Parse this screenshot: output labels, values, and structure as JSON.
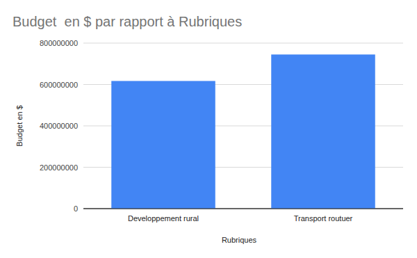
{
  "chart_data": {
    "type": "bar",
    "title": "Budget  en $ par rapport à Rubriques",
    "x_label": "Rubriques",
    "y_label": "Budget en $",
    "categories": [
      "Developpement rural",
      "Transport routuer"
    ],
    "values": [
      617000000,
      745000000
    ],
    "color": "#4285f4",
    "ylim": [
      0,
      800000000
    ],
    "yticks": [
      0,
      200000000,
      400000000,
      600000000,
      800000000
    ],
    "grid": true
  }
}
